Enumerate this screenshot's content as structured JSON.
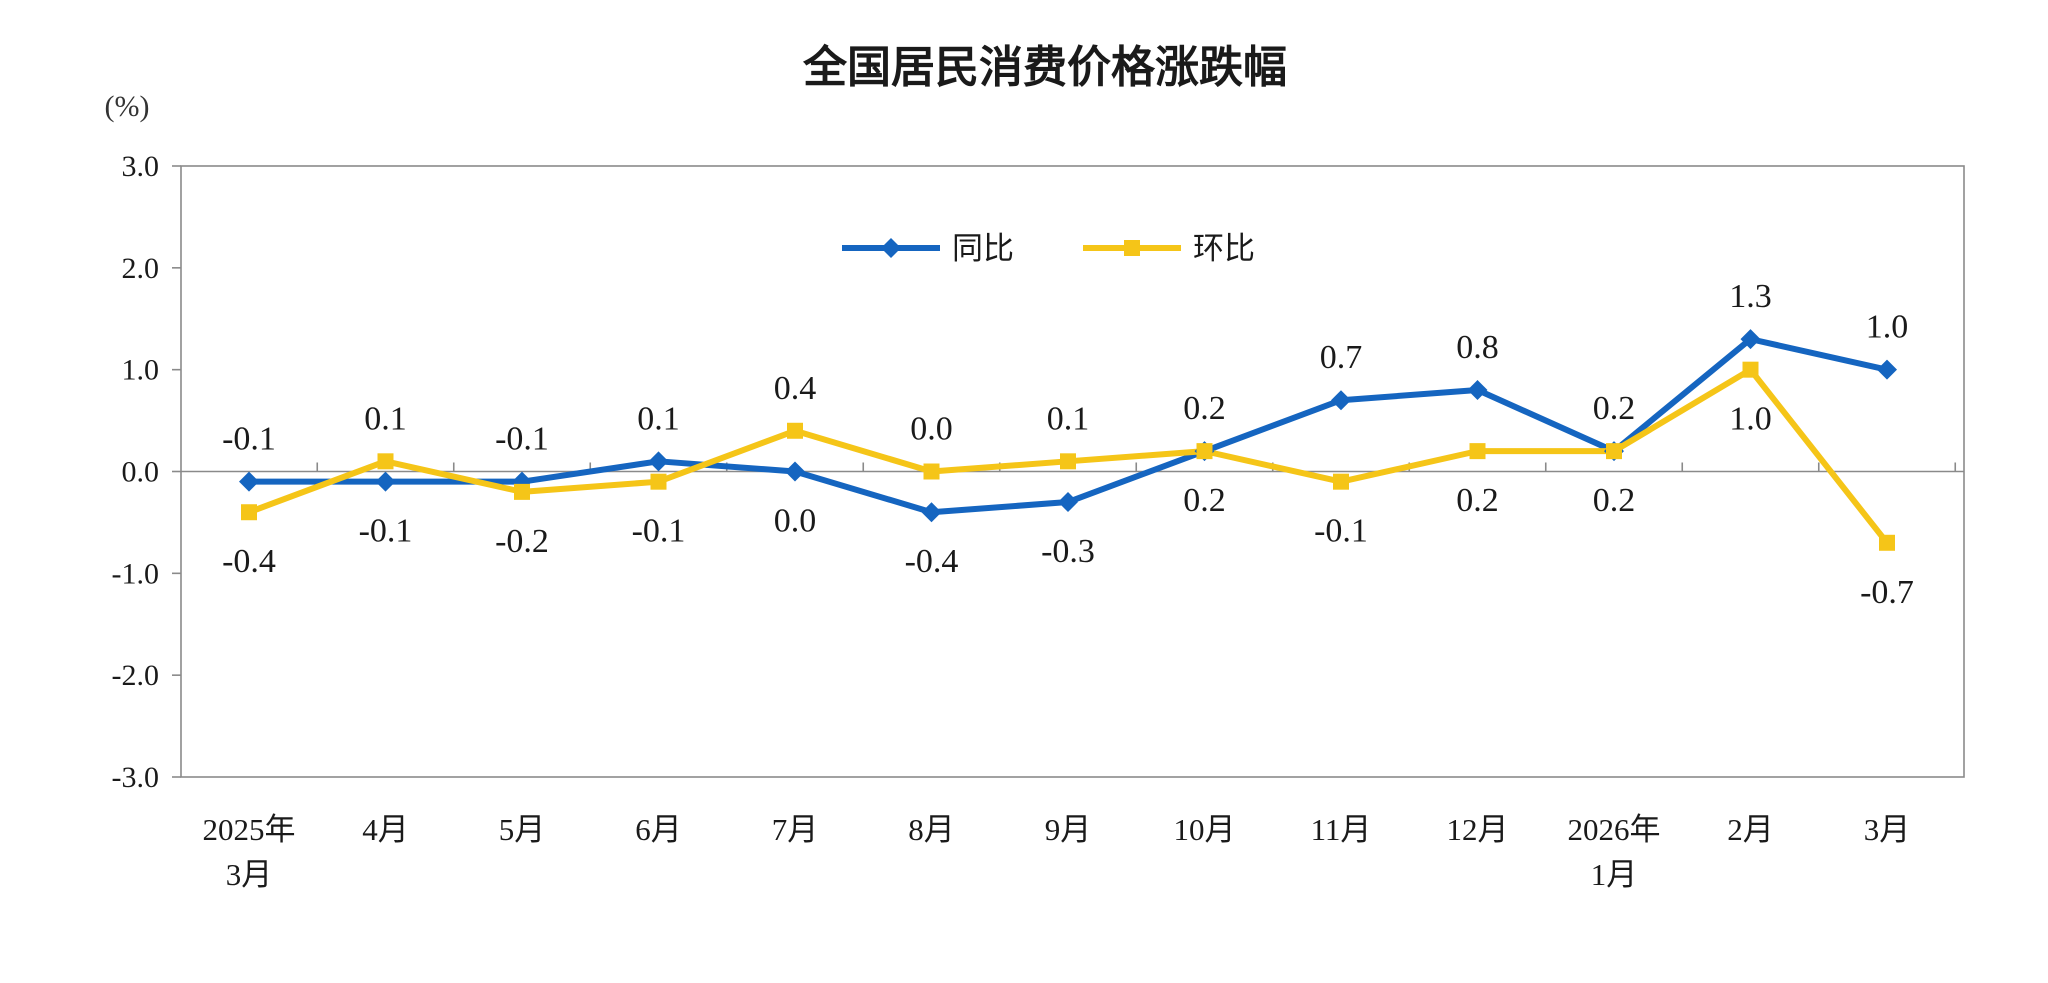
{
  "chart_data": {
    "type": "line",
    "title": "全国居民消费价格涨跌幅",
    "unit": "(%)",
    "categories": [
      [
        "2025年",
        "3月"
      ],
      [
        "4月"
      ],
      [
        "5月"
      ],
      [
        "6月"
      ],
      [
        "7月"
      ],
      [
        "8月"
      ],
      [
        "9月"
      ],
      [
        "10月"
      ],
      [
        "11月"
      ],
      [
        "12月"
      ],
      [
        "2026年",
        "1月"
      ],
      [
        "2月"
      ],
      [
        "3月"
      ]
    ],
    "ylim": [
      -3.0,
      3.0
    ],
    "yticks": [
      3.0,
      2.0,
      1.0,
      0.0,
      -1.0,
      -2.0,
      -3.0
    ],
    "ytick_labels": [
      "3.0",
      "2.0",
      "1.0",
      "0.0",
      "-1.0",
      "-2.0",
      "-3.0"
    ],
    "legend_position": "top-center",
    "grid": false,
    "series": [
      {
        "name": "同比",
        "color": "#1565C0",
        "marker": "diamond",
        "values": [
          -0.1,
          -0.1,
          -0.1,
          0.1,
          0.0,
          -0.4,
          -0.3,
          0.2,
          0.7,
          0.8,
          0.2,
          1.3,
          1.0
        ],
        "labels": [
          "-0.1",
          "-0.1",
          "-0.1",
          "0.1",
          "0.0",
          "-0.4",
          "-0.3",
          "0.2",
          "0.7",
          "0.8",
          "0.2",
          "1.3",
          "1.0"
        ],
        "label_side": [
          "above",
          "below",
          "above",
          "above",
          "below",
          "below",
          "below",
          "above",
          "above",
          "above",
          "above",
          "above",
          "above"
        ]
      },
      {
        "name": "环比",
        "color": "#F5C518",
        "marker": "square",
        "values": [
          -0.4,
          0.1,
          -0.2,
          -0.1,
          0.4,
          0.0,
          0.1,
          0.2,
          -0.1,
          0.2,
          0.2,
          1.0,
          -0.7
        ],
        "labels": [
          "-0.4",
          "0.1",
          "-0.2",
          "-0.1",
          "0.4",
          "0.0",
          "0.1",
          "0.2",
          "-0.1",
          "0.2",
          "0.2",
          "1.0",
          "-0.7"
        ],
        "label_side": [
          "below",
          "above",
          "below",
          "below",
          "above",
          "above",
          "above",
          "below",
          "below",
          "below",
          "below",
          "below",
          "below"
        ]
      }
    ]
  }
}
